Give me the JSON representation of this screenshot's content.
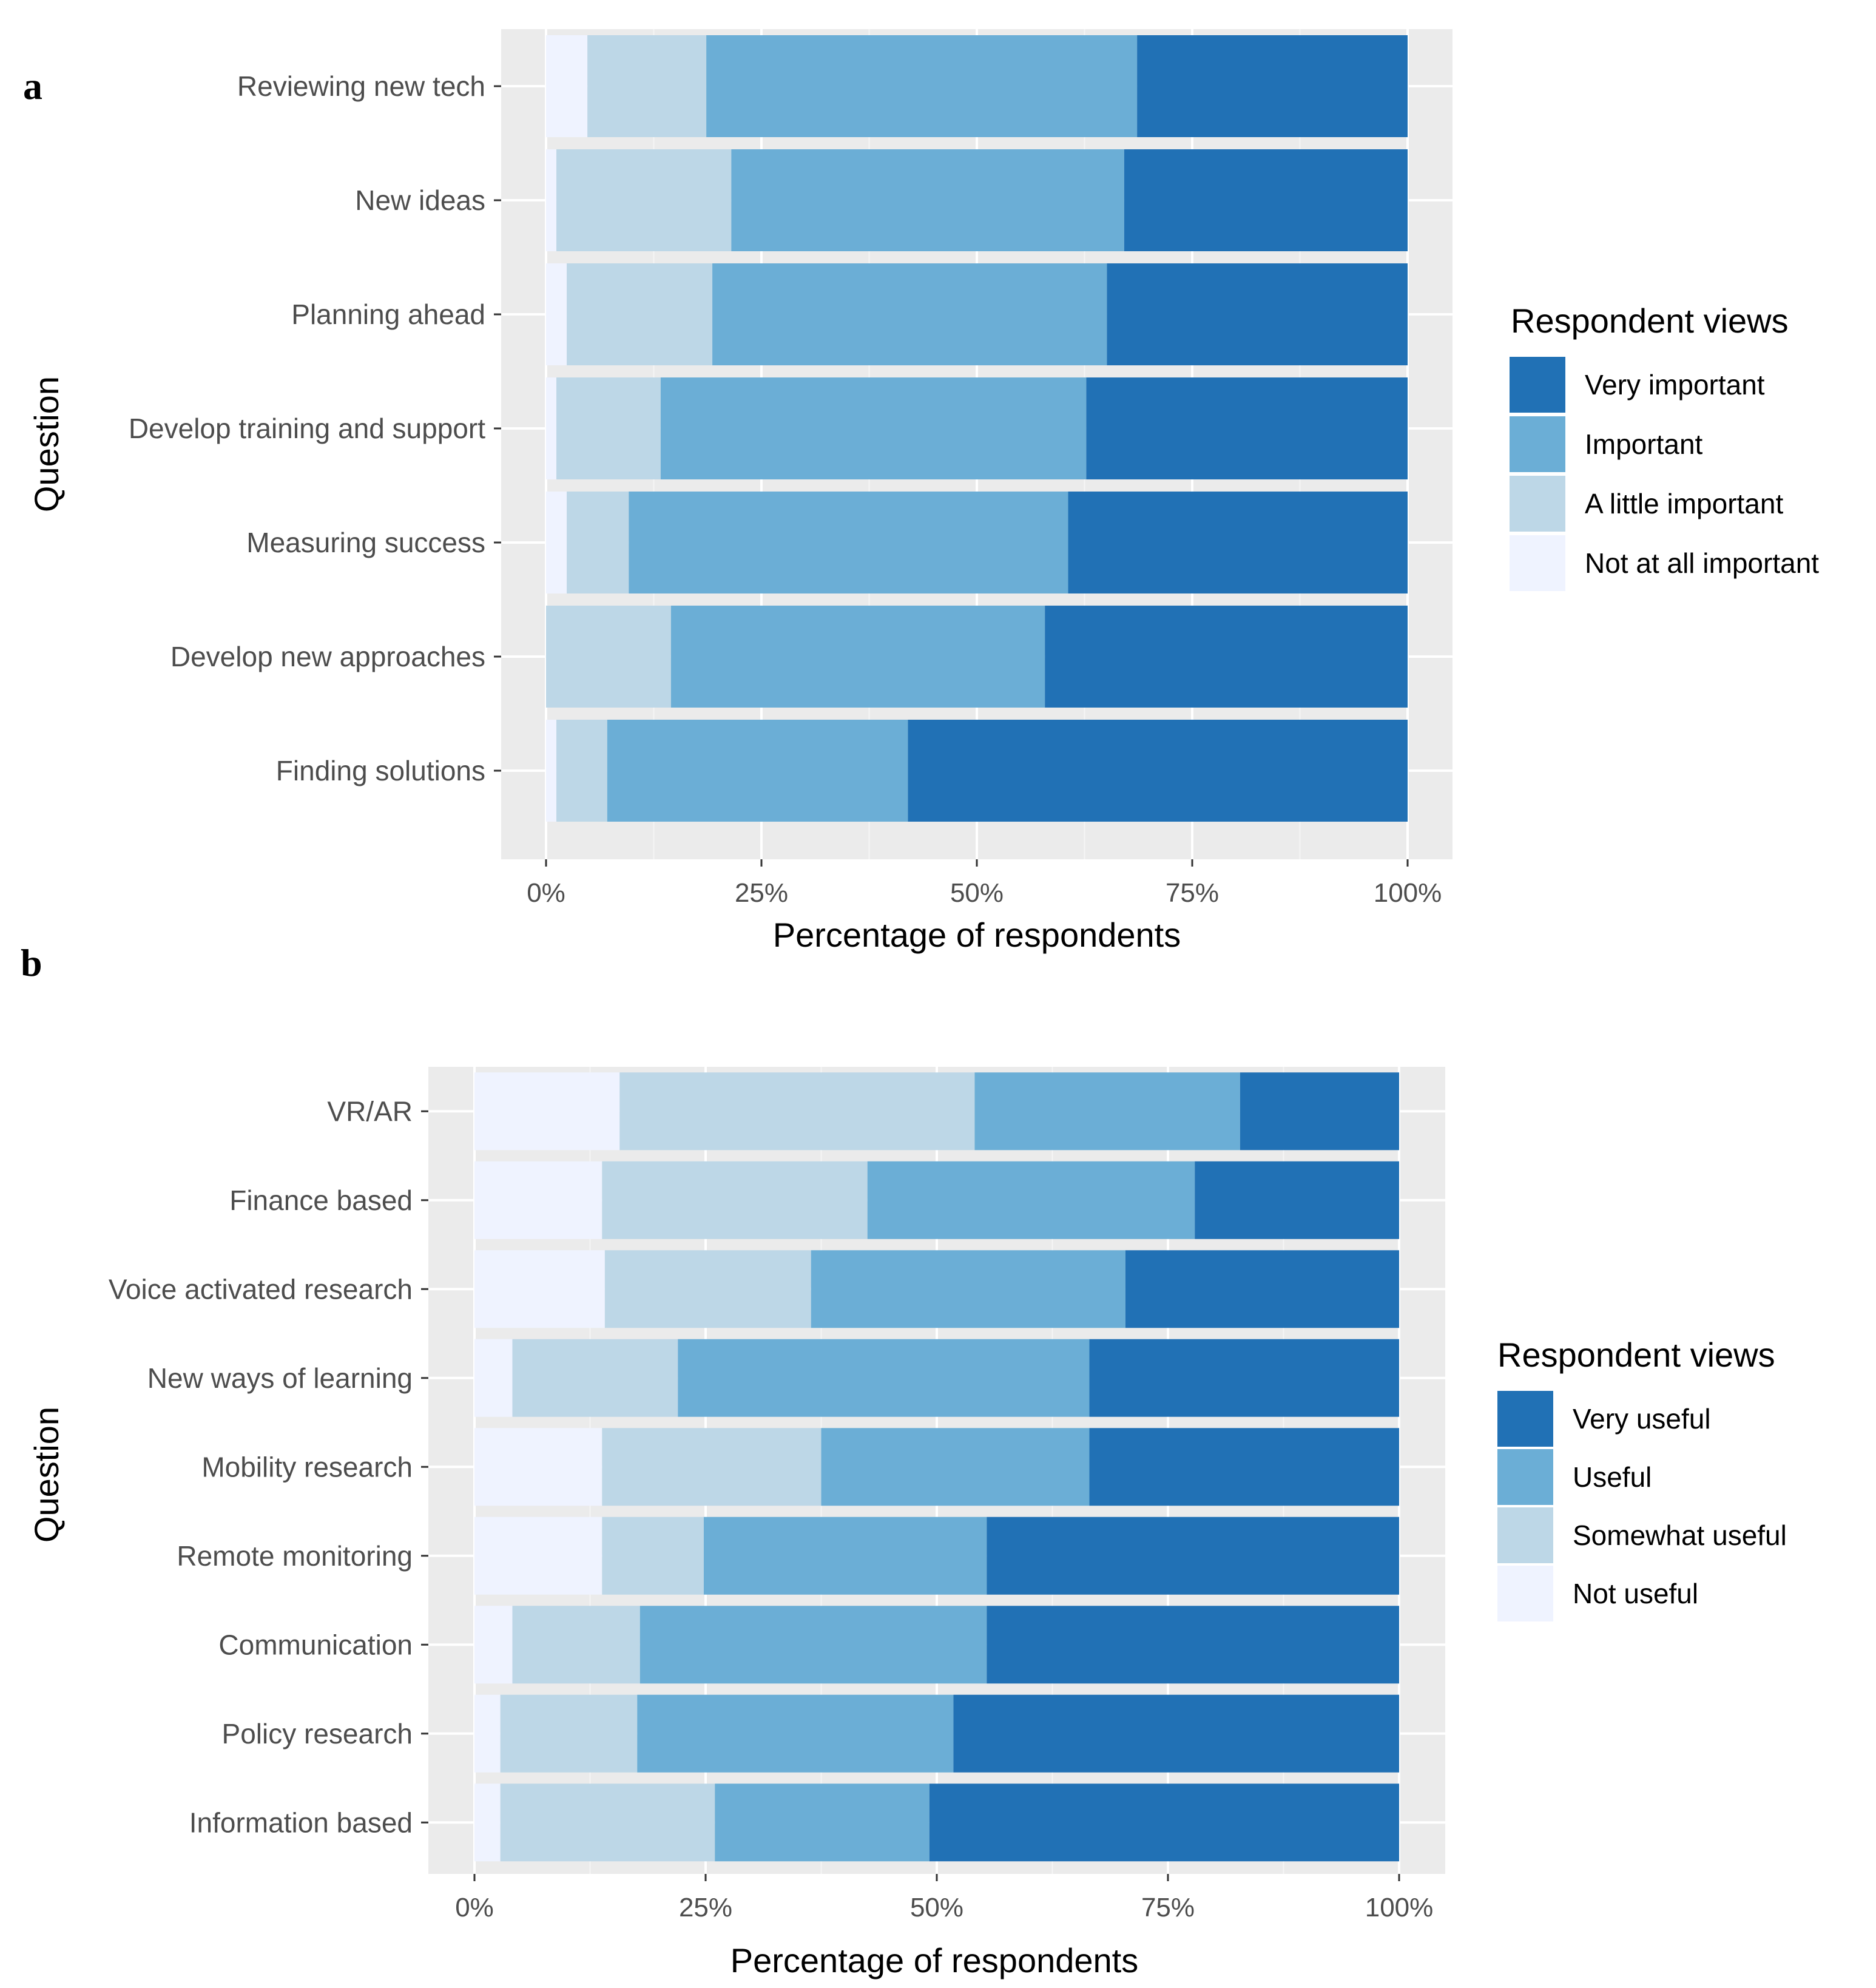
{
  "figure_labels": [
    "a",
    "b"
  ],
  "chart_data": [
    {
      "type": "bar",
      "orientation": "horizontal",
      "stacked": true,
      "panel_label": "a",
      "title": "",
      "xlabel": "Percentage of respondents",
      "ylabel": "Question",
      "xlim": [
        0,
        100
      ],
      "x_ticks": [
        0,
        25,
        50,
        75,
        100
      ],
      "x_tick_labels": [
        "0%",
        "25%",
        "50%",
        "75%",
        "100%"
      ],
      "categories": [
        "Reviewing new tech",
        "New ideas",
        "Planning ahead",
        "Develop training and support",
        "Measuring success",
        "Develop new approaches",
        "Finding solutions"
      ],
      "legend_title": "Respondent views",
      "legend_position": "right",
      "grid": true,
      "series": [
        {
          "name": "Not at all important",
          "color": "#eff3ff",
          "values": [
            4.8,
            1.2,
            2.4,
            1.2,
            2.4,
            0,
            1.2
          ]
        },
        {
          "name": "A little important",
          "color": "#bdd7e7",
          "values": [
            13.8,
            20.3,
            16.9,
            12.1,
            7.2,
            14.5,
            5.9
          ]
        },
        {
          "name": "Important",
          "color": "#6baed6",
          "values": [
            50.0,
            45.6,
            45.8,
            49.4,
            51.0,
            43.4,
            34.9
          ]
        },
        {
          "name": "Very important",
          "color": "#2171b5",
          "values": [
            31.4,
            32.9,
            34.9,
            37.3,
            39.4,
            42.1,
            58.0
          ]
        }
      ],
      "legend_order": [
        "Very important",
        "Important",
        "A little important",
        "Not at all important"
      ]
    },
    {
      "type": "bar",
      "orientation": "horizontal",
      "stacked": true,
      "panel_label": "b",
      "title": "",
      "xlabel": "Percentage of respondents",
      "ylabel": "Question",
      "xlim": [
        0,
        100
      ],
      "x_ticks": [
        0,
        25,
        50,
        75,
        100
      ],
      "x_tick_labels": [
        "0%",
        "25%",
        "50%",
        "75%",
        "100%"
      ],
      "categories": [
        "VR/AR",
        "Finance based",
        "Voice activated research",
        "New ways of learning",
        "Mobility research",
        "Remote monitoring",
        "Communication",
        "Policy research",
        "Information based"
      ],
      "legend_title": "Respondent views",
      "legend_position": "right",
      "grid": true,
      "series": [
        {
          "name": "Not useful",
          "color": "#eff3ff",
          "values": [
            15.7,
            13.8,
            14.1,
            4.1,
            13.8,
            13.8,
            4.1,
            2.8,
            2.8
          ]
        },
        {
          "name": "Somewhat useful",
          "color": "#bdd7e7",
          "values": [
            38.4,
            28.7,
            22.3,
            17.9,
            23.7,
            11.0,
            13.8,
            14.8,
            23.2
          ]
        },
        {
          "name": "Useful",
          "color": "#6baed6",
          "values": [
            28.7,
            35.4,
            34.0,
            44.5,
            29.0,
            30.6,
            37.5,
            34.2,
            23.2
          ]
        },
        {
          "name": "Very useful",
          "color": "#2171b5",
          "values": [
            17.2,
            22.1,
            29.6,
            33.5,
            33.5,
            44.6,
            44.6,
            48.2,
            50.8
          ]
        }
      ],
      "legend_order": [
        "Very useful",
        "Useful",
        "Somewhat useful",
        "Not useful"
      ]
    }
  ]
}
